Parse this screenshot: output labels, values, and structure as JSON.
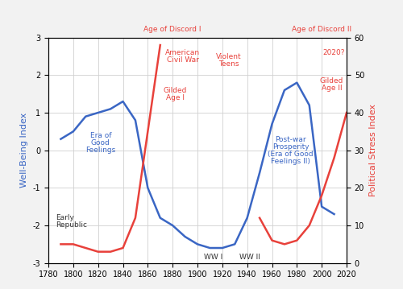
{
  "chart_data": {
    "type": "line",
    "x": [
      1790,
      1800,
      1810,
      1820,
      1830,
      1840,
      1850,
      1860,
      1870,
      1880,
      1890,
      1900,
      1910,
      1920,
      1930,
      1940,
      1950,
      1960,
      1970,
      1980,
      1990,
      2000,
      2010,
      2020
    ],
    "series": [
      {
        "color": "#3a66c4",
        "axis": "y",
        "values": [
          0.3,
          0.5,
          0.9,
          1.0,
          1.1,
          1.3,
          0.8,
          -1.0,
          -1.8,
          -2.0,
          -2.3,
          -2.5,
          -2.6,
          -2.6,
          -2.5,
          -1.8,
          -0.6,
          0.7,
          1.6,
          1.8,
          1.2,
          -1.5,
          -1.7,
          null
        ]
      },
      {
        "color": "#e8413b",
        "axis": "y2",
        "values": [
          5,
          5,
          4,
          3,
          3,
          4,
          12,
          35,
          58,
          null,
          null,
          null,
          null,
          null,
          null,
          null,
          12,
          6,
          5,
          6,
          10,
          18,
          28,
          40
        ]
      }
    ],
    "ylabel": "Well-Being Index",
    "y2label": "Political Stress Index",
    "xlim": [
      1780,
      2020
    ],
    "xticks": [
      1780,
      1800,
      1820,
      1840,
      1860,
      1880,
      1900,
      1920,
      1940,
      1960,
      1980,
      2000,
      2020
    ],
    "ylim": [
      -3,
      3
    ],
    "yticks": [
      -3,
      -2,
      -1,
      0,
      1,
      2,
      3
    ],
    "y2lim": [
      0,
      60
    ],
    "y2ticks": [
      0,
      10,
      20,
      30,
      40,
      50,
      60
    ],
    "grid": true,
    "annotations": [
      {
        "text": "Age of Discord I",
        "color": "#e8413b"
      },
      {
        "text": "American\nCivil War",
        "color": "#e8413b"
      },
      {
        "text": "Violent\nTeens",
        "color": "#e8413b"
      },
      {
        "text": "Age of Discord II",
        "color": "#e8413b"
      },
      {
        "text": "2020?",
        "color": "#e8413b"
      },
      {
        "text": "Gilded\nAge I",
        "color": "#e8413b"
      },
      {
        "text": "Era of\nGood\nFeelings",
        "color": "#3a66c4"
      },
      {
        "text": "Early\nRepublic",
        "color": "#333333"
      },
      {
        "text": "WW I",
        "color": "#333333"
      },
      {
        "text": "WW II",
        "color": "#333333"
      },
      {
        "text": "Post-war\nProsperity\n(Era of Good\nFeelings II)",
        "color": "#3a66c4"
      },
      {
        "text": "Gilded\nAge II",
        "color": "#e8413b"
      }
    ]
  }
}
